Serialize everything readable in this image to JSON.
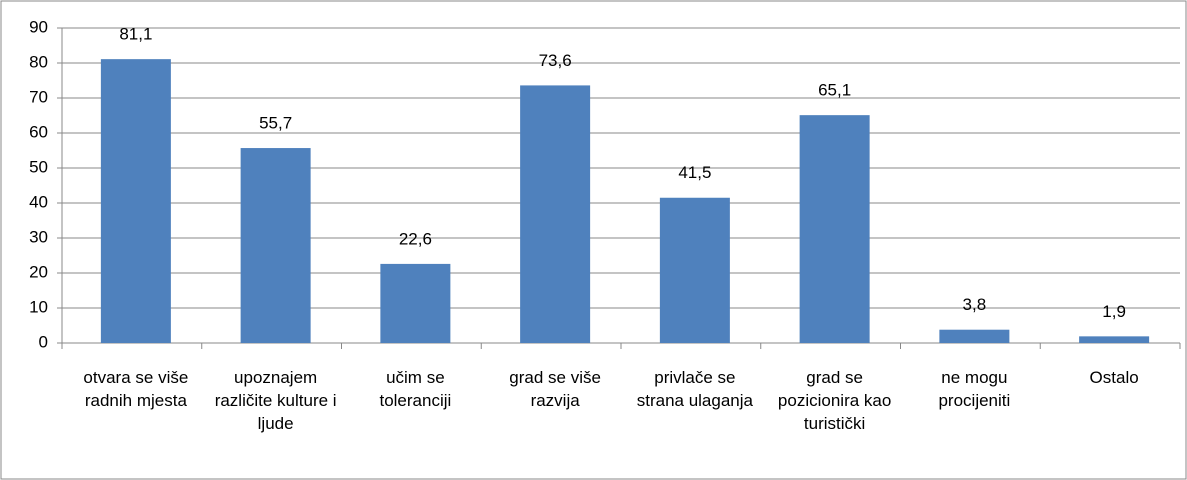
{
  "chart_data": {
    "type": "bar",
    "categories": [
      "otvara se više radnih mjesta",
      "upoznajem različite kulture i ljude",
      "učim se toleranciji",
      "grad se više razvija",
      "privlače se strana ulaganja",
      "grad se pozicionira kao turistički",
      "ne mogu procijeniti",
      "Ostalo"
    ],
    "values": [
      81.1,
      55.7,
      22.6,
      73.6,
      41.5,
      65.1,
      3.8,
      1.9
    ],
    "value_labels": [
      "81,1",
      "55,7",
      "22,6",
      "73,6",
      "41,5",
      "65,1",
      "3,8",
      "1,9"
    ],
    "color": "#4f81bd",
    "ylim": [
      0,
      90
    ],
    "yticks": [
      0,
      10,
      20,
      30,
      40,
      50,
      60,
      70,
      80,
      90
    ],
    "grid": true
  }
}
